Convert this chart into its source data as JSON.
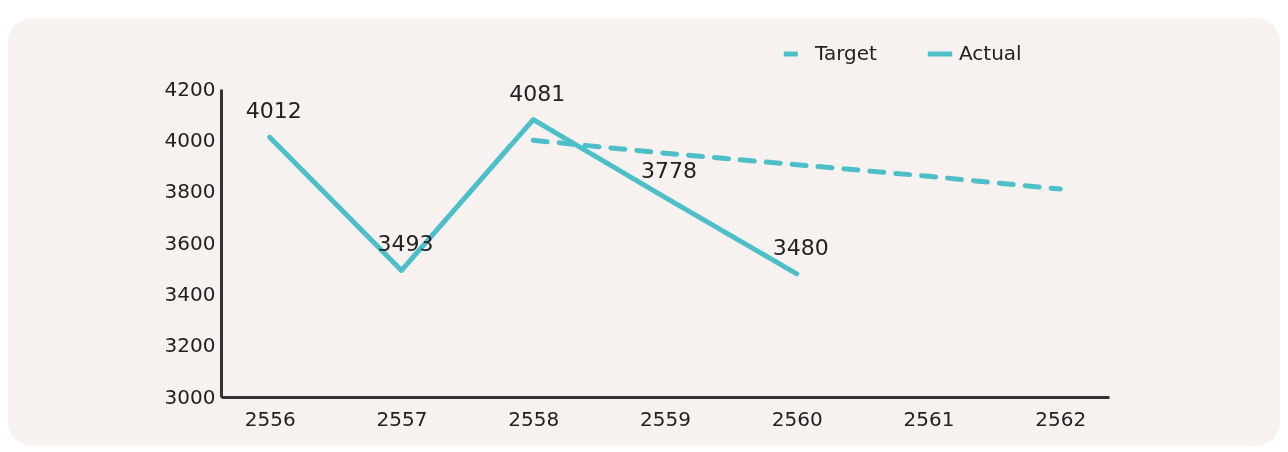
{
  "chart_data": {
    "type": "line",
    "categories": [
      "2556",
      "2557",
      "2558",
      "2559",
      "2560",
      "2561",
      "2562"
    ],
    "series": [
      {
        "name": "Target",
        "color": "#4dbfc8",
        "line_style": "dashed",
        "values": [
          null,
          null,
          4000,
          3950,
          3905,
          3860,
          3810
        ]
      },
      {
        "name": "Actual",
        "color": "#4dbfc8",
        "line_style": "solid",
        "values": [
          4012,
          3493,
          4081,
          3778,
          3480,
          null,
          null
        ],
        "value_labels": [
          "4012",
          "3493",
          "4081",
          "3778",
          "3480",
          null,
          null
        ]
      }
    ],
    "ylim": [
      3000,
      4200
    ],
    "yticks": [
      3000,
      3200,
      3400,
      3600,
      3800,
      4000,
      4200
    ],
    "grid": false,
    "legend": "top right",
    "marker": "none"
  }
}
